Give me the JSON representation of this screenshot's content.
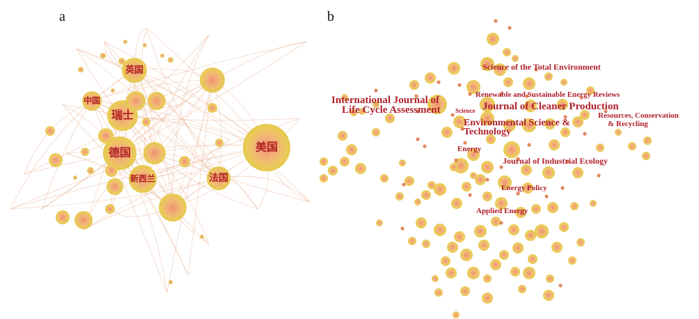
{
  "panel_a": {
    "label": "a",
    "colors": {
      "node_outer": "#e8cf55",
      "node_inner": "#f19a6e",
      "edge": "#e6a884",
      "label": "#b22222"
    },
    "countries": {
      "usa": "美国",
      "germany": "德国",
      "switzerland": "瑞士",
      "uk": "英国",
      "china": "中国",
      "new_zealand": "新西兰",
      "france": "法国"
    }
  },
  "panel_b": {
    "label": "b",
    "colors": {
      "node_outer": "#e8cf55",
      "node_inner": "#f19a6e",
      "small_node": "#e07a4f",
      "label": "#b0202a"
    },
    "journals": {
      "stoten": "Science of the Total Environment",
      "rser": "Renewable and Sustainable Energy Reviews",
      "ijlca_1": "International Journal of",
      "ijlca_2": "Life Cycle Assessment",
      "science": "Science",
      "jclp": "Journal of Cleaner Production",
      "rcr_1": "Resources, Conservation",
      "rcr_2": "& Recycling",
      "est_1": "Environmental Science &",
      "est_2": "Technology",
      "energy": "Energy",
      "jie": "Journal of Industrial Ecology",
      "energy_policy": "Energy Policy",
      "applied_energy": "Applied Energy"
    }
  }
}
